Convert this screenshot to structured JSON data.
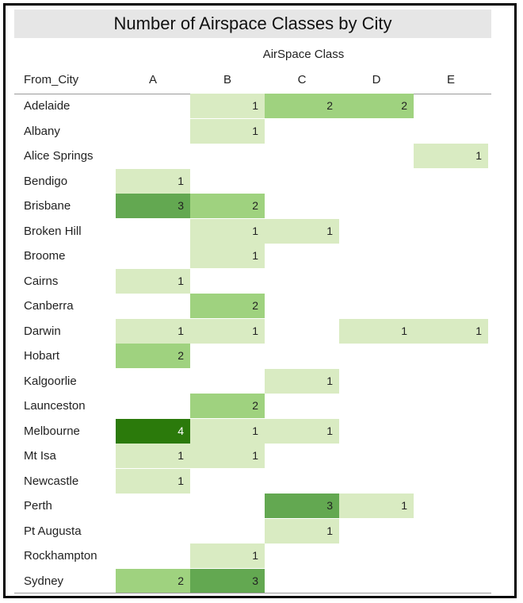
{
  "chart_data": {
    "type": "heatmap",
    "title": "Number of Airspace Classes by City",
    "column_group_label": "AirSpace Class",
    "row_header": "From_City",
    "columns": [
      "A",
      "B",
      "C",
      "D",
      "E"
    ],
    "rows": [
      "Adelaide",
      "Albany",
      "Alice Springs",
      "Bendigo",
      "Brisbane",
      "Broken Hill",
      "Broome",
      "Cairns",
      "Canberra",
      "Darwin",
      "Hobart",
      "Kalgoorlie",
      "Launceston",
      "Melbourne",
      "Mt Isa",
      "Newcastle",
      "Perth",
      "Pt Augusta",
      "Rockhampton",
      "Sydney"
    ],
    "values": [
      [
        null,
        1,
        2,
        2,
        null
      ],
      [
        null,
        1,
        null,
        null,
        null
      ],
      [
        null,
        null,
        null,
        null,
        1
      ],
      [
        1,
        null,
        null,
        null,
        null
      ],
      [
        3,
        2,
        null,
        null,
        null
      ],
      [
        null,
        1,
        1,
        null,
        null
      ],
      [
        null,
        1,
        null,
        null,
        null
      ],
      [
        1,
        null,
        null,
        null,
        null
      ],
      [
        null,
        2,
        null,
        null,
        null
      ],
      [
        1,
        1,
        null,
        1,
        1
      ],
      [
        2,
        null,
        null,
        null,
        null
      ],
      [
        null,
        null,
        1,
        null,
        null
      ],
      [
        null,
        2,
        null,
        null,
        null
      ],
      [
        4,
        1,
        1,
        null,
        null
      ],
      [
        1,
        1,
        null,
        null,
        null
      ],
      [
        1,
        null,
        null,
        null,
        null
      ],
      [
        null,
        null,
        3,
        1,
        null
      ],
      [
        null,
        null,
        1,
        null,
        null
      ],
      [
        null,
        1,
        null,
        null,
        null
      ],
      [
        2,
        3,
        null,
        null,
        null
      ]
    ],
    "color_scale": {
      "1": "#d9ebc2",
      "2": "#9fd27f",
      "3": "#63a851",
      "4": "#2b7a0b"
    },
    "text_colors": {
      "1": "#222222",
      "2": "#222222",
      "3": "#222222",
      "4": "#ffffff"
    }
  }
}
